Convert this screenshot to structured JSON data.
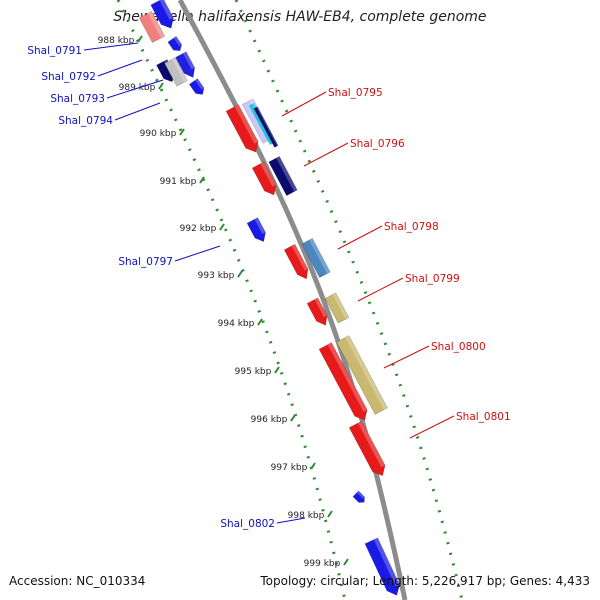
{
  "map_title": "Shewanella halifaxensis HAW-EB4, complete genome",
  "footer": {
    "accession": "Accession: NC_010334",
    "stats": "Topology: circular; Length: 5,226,917 bp; Genes: 4,433"
  },
  "colors": {
    "backbone": "#8c8c8c",
    "dots": "#2e8b2e",
    "forward_label": "#1010c0",
    "reverse_label": "#cc1010"
  },
  "ticks": [
    "988 kbp",
    "989 kbp",
    "990 kbp",
    "991 kbp",
    "992 kbp",
    "993 kbp",
    "994 kbp",
    "995 kbp",
    "996 kbp",
    "997 kbp",
    "998 kbp",
    "999 kbp"
  ],
  "genes": [
    {
      "name": "Shal_0791",
      "strand": "forward",
      "color": "#1a1ae6"
    },
    {
      "name": "Shal_0792",
      "strand": "forward",
      "color": "#0a0a70"
    },
    {
      "name": "Shal_0793",
      "strand": "forward",
      "color": "#2020e0"
    },
    {
      "name": "Shal_0794",
      "strand": "forward",
      "color": "#1a1ae6"
    },
    {
      "name": "Shal_0795",
      "strand": "reverse",
      "color": "#e61a1a"
    },
    {
      "name": "Shal_0796",
      "strand": "reverse",
      "color": "#e61a1a"
    },
    {
      "name": "Shal_0797",
      "strand": "forward",
      "color": "#1a1ae6"
    },
    {
      "name": "Shal_0798",
      "strand": "reverse",
      "color": "#e61a1a"
    },
    {
      "name": "Shal_0799",
      "strand": "reverse",
      "color": "#e61a1a"
    },
    {
      "name": "Shal_0800",
      "strand": "reverse",
      "color": "#e61a1a"
    },
    {
      "name": "Shal_0801",
      "strand": "reverse",
      "color": "#e61a1a"
    },
    {
      "name": "Shal_0802",
      "strand": "forward",
      "color": "#1a1ae6"
    }
  ],
  "feature_blocks": [
    {
      "name": "light-red-feature",
      "color": "#f08080"
    },
    {
      "name": "grey-feature",
      "color": "#c0c0c0"
    },
    {
      "name": "light-blue-feature",
      "color": "#c8c8ff"
    },
    {
      "name": "cyan-feature",
      "color": "#12d0e0"
    },
    {
      "name": "navy-feature",
      "color": "#0a0a70"
    },
    {
      "name": "steelblue-feature",
      "color": "#4a86c0"
    },
    {
      "name": "khaki-feature",
      "color": "#c8b870"
    }
  ]
}
